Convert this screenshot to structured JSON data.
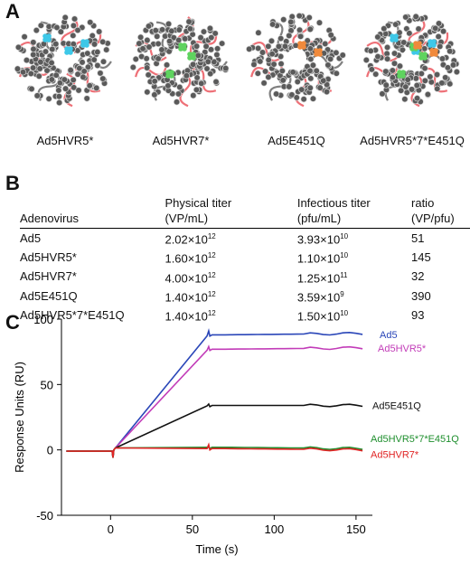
{
  "panels": {
    "a": "A",
    "b": "B",
    "c": "C"
  },
  "structures": [
    {
      "label": "Ad5HVR5*",
      "highlights": [
        "cyan"
      ]
    },
    {
      "label": "Ad5HVR7*",
      "highlights": [
        "green"
      ]
    },
    {
      "label": "Ad5E451Q",
      "highlights": [
        "orange"
      ]
    },
    {
      "label": "Ad5HVR5*7*E451Q",
      "highlights": [
        "cyan",
        "green",
        "orange"
      ]
    }
  ],
  "table": {
    "headers": [
      "Adenovirus",
      "Physical titer (VP/mL)",
      "Infectious titer (pfu/mL)",
      "ratio (VP/pfu)"
    ],
    "header_lines": [
      [
        "",
        "Adenovirus"
      ],
      [
        "Physical titer",
        "(VP/mL)"
      ],
      [
        "Infectious titer",
        "(pfu/mL)"
      ],
      [
        "ratio",
        "(VP/pfu)"
      ]
    ],
    "rows": [
      {
        "name": "Ad5",
        "phys_m": "2.02×10",
        "phys_e": "12",
        "inf_m": "3.93×10",
        "inf_e": "10",
        "ratio": "51"
      },
      {
        "name": "Ad5HVR5*",
        "phys_m": "1.60×10",
        "phys_e": "12",
        "inf_m": "1.10×10",
        "inf_e": "10",
        "ratio": "145"
      },
      {
        "name": "Ad5HVR7*",
        "phys_m": "4.00×10",
        "phys_e": "12",
        "inf_m": "1.25×10",
        "inf_e": "11",
        "ratio": "32"
      },
      {
        "name": "Ad5E451Q",
        "phys_m": "1.40×10",
        "phys_e": "12",
        "inf_m": "3.59×10",
        "inf_e": "9",
        "ratio": "390"
      },
      {
        "name": "Ad5HVR5*7*E451Q",
        "phys_m": "1.40×10",
        "phys_e": "12",
        "inf_m": "1.50×10",
        "inf_e": "10",
        "ratio": "93"
      }
    ]
  },
  "colors": {
    "cyan": "#3ec8e8",
    "green": "#5fd35f",
    "orange": "#f08a3c",
    "ribbon": "#e8404a",
    "sphere": "#5a5a5a"
  },
  "chart_data": {
    "type": "line",
    "xlabel": "Time (s)",
    "ylabel": "Response Units (RU)",
    "xlim": [
      -30,
      160
    ],
    "ylim": [
      -50,
      100
    ],
    "xticks": [
      0,
      50,
      100,
      150
    ],
    "yticks": [
      -50,
      0,
      50,
      100
    ],
    "series": [
      {
        "name": "Ad5",
        "color": "#2a46b8",
        "plateau": 88,
        "peak": 91,
        "end": 89
      },
      {
        "name": "Ad5HVR5*",
        "color": "#c23cb8",
        "plateau": 77,
        "peak": 79,
        "end": 78
      },
      {
        "name": "Ad5E451Q",
        "color": "#111111",
        "plateau": 34,
        "peak": 35,
        "end": 34
      },
      {
        "name": "Ad5HVR5*7*E451Q",
        "color": "#1f8f2e",
        "plateau": 2,
        "peak": 2,
        "end": 1
      },
      {
        "name": "Ad5HVR7*",
        "color": "#e02424",
        "plateau": 1,
        "peak": 4,
        "end": 0
      }
    ],
    "injection_start": 2,
    "injection_end": 60,
    "baseline": -1
  }
}
